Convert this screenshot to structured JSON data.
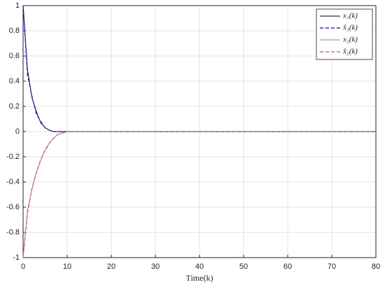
{
  "chart_data": {
    "type": "line",
    "x_label": "Time(k)",
    "x": [
      0,
      1,
      2,
      3,
      4,
      5,
      6,
      7,
      8,
      9,
      10,
      11,
      12,
      20,
      30,
      40,
      50,
      60,
      70,
      80
    ],
    "series": [
      {
        "name": "x₁(k)",
        "color": "#000000",
        "style": "solid",
        "values": [
          1,
          0.49,
          0.27,
          0.16,
          0.07,
          0.03,
          0.01,
          0,
          0,
          0,
          0,
          0,
          0,
          0,
          0,
          0,
          0,
          0,
          0,
          0
        ]
      },
      {
        "name": "x̂₁(k)",
        "color": "#2a2ad8",
        "style": "dashed",
        "values": [
          1,
          0.45,
          0.28,
          0.14,
          0.08,
          0.03,
          0.01,
          0,
          0,
          0,
          0,
          0,
          0,
          0,
          0,
          0,
          0,
          0,
          0,
          0
        ]
      },
      {
        "name": "x₂(k)",
        "color": "#8c8c8c",
        "style": "solid",
        "values": [
          -1,
          -0.62,
          -0.46,
          -0.32,
          -0.23,
          -0.14,
          -0.09,
          -0.05,
          -0.02,
          -0.01,
          0,
          0,
          0,
          0,
          0,
          0,
          0,
          0,
          0,
          0
        ]
      },
      {
        "name": "x̂₂(k)",
        "color": "#d06a8e",
        "style": "dashed",
        "values": [
          -1,
          -0.65,
          -0.45,
          -0.33,
          -0.22,
          -0.15,
          -0.09,
          -0.05,
          -0.02,
          -0.01,
          0,
          0,
          0,
          0,
          0,
          0,
          0,
          0,
          0,
          0
        ]
      }
    ],
    "xlim": [
      0,
      80
    ],
    "xticks": [
      0,
      10,
      20,
      30,
      40,
      50,
      60,
      70,
      80
    ],
    "ylim": [
      -1,
      1
    ],
    "yticks": [
      -1,
      -0.8,
      -0.6,
      -0.4,
      -0.2,
      0,
      0.2,
      0.4,
      0.6,
      0.8,
      1
    ],
    "grid": true,
    "legend": "upper right"
  }
}
